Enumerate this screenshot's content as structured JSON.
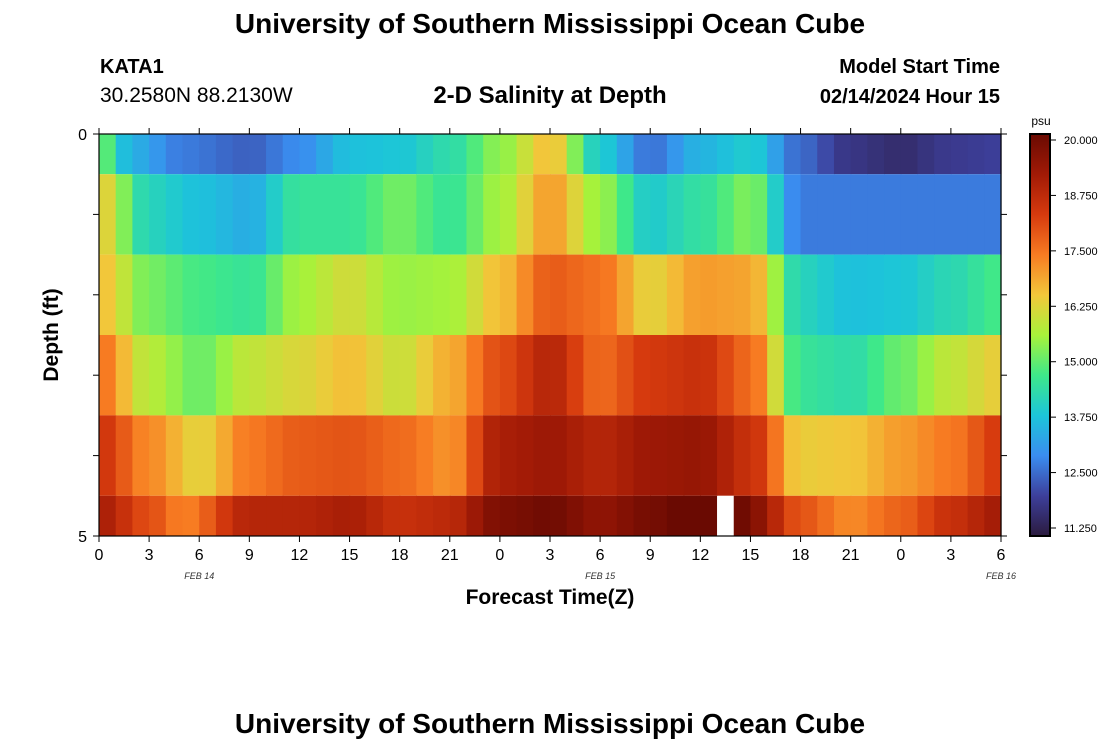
{
  "header": {
    "title": "University of Southern Mississippi Ocean Cube",
    "station": "KATA1",
    "coords": "30.2580N  88.2130W",
    "subtitle": "2-D Salinity at Depth",
    "start_label": "Model Start Time",
    "start_value": "02/14/2024 Hour 15"
  },
  "footer": {
    "title": "University of Southern Mississippi Ocean Cube"
  },
  "chart_data": {
    "type": "heatmap",
    "title": "2-D Salinity at Depth",
    "xlabel": "Forecast Time(Z)",
    "ylabel": "Depth (ft)",
    "x_tick_labels": [
      "0",
      "3",
      "6",
      "9",
      "12",
      "15",
      "18",
      "21",
      "0",
      "3",
      "6",
      "9",
      "12",
      "15",
      "18",
      "21",
      "0",
      "3",
      "6"
    ],
    "y_tick_labels": [
      "0",
      "5"
    ],
    "ylim": [
      0,
      5
    ],
    "date_labels": [
      {
        "label": "FEB 14",
        "hour": 6
      },
      {
        "label": "FEB 15",
        "hour": 30
      },
      {
        "label": "FEB 16",
        "hour": 54
      }
    ],
    "colorbar": {
      "unit": "psu",
      "min": 11.25,
      "max": 20.0,
      "ticks": [
        "20.000",
        "18.750",
        "17.500",
        "16.250",
        "15.000",
        "13.750",
        "12.500",
        "11.250"
      ],
      "colors": [
        "#2b1b3e",
        "#3d3f9b",
        "#3a8df0",
        "#1cc5d9",
        "#3ee88a",
        "#a8f23a",
        "#f2c73a",
        "#f77b22",
        "#d63a0e",
        "#a11a06",
        "#6a0a02"
      ]
    },
    "missing_hour": 37,
    "hours_per_column": 1,
    "layers": [
      {
        "depth_range": [
          0,
          0.5
        ],
        "keys": [
          [
            0,
            15.2
          ],
          [
            2,
            13.5
          ],
          [
            5,
            12.8
          ],
          [
            9,
            12.5
          ],
          [
            12,
            13.0
          ],
          [
            15,
            13.8
          ],
          [
            18,
            13.9
          ],
          [
            21,
            14.4
          ],
          [
            24,
            15.4
          ],
          [
            27,
            16.6
          ],
          [
            30,
            14.0
          ],
          [
            33,
            12.7
          ],
          [
            36,
            13.6
          ],
          [
            39,
            14.0
          ],
          [
            42,
            12.6
          ],
          [
            45,
            11.9
          ],
          [
            48,
            11.7
          ],
          [
            51,
            12.0
          ],
          [
            54,
            12.1
          ]
        ]
      },
      {
        "depth_range": [
          0.5,
          1.5
        ],
        "keys": [
          [
            0,
            16.4
          ],
          [
            3,
            14.2
          ],
          [
            6,
            13.8
          ],
          [
            9,
            13.5
          ],
          [
            12,
            14.6
          ],
          [
            15,
            14.6
          ],
          [
            18,
            15.2
          ],
          [
            21,
            14.6
          ],
          [
            24,
            15.6
          ],
          [
            27,
            17.0
          ],
          [
            30,
            15.5
          ],
          [
            33,
            14.0
          ],
          [
            36,
            14.5
          ],
          [
            39,
            15.3
          ],
          [
            42,
            12.8
          ],
          [
            48,
            12.8
          ],
          [
            54,
            12.8
          ]
        ]
      },
      {
        "depth_range": [
          1.5,
          2.5
        ],
        "keys": [
          [
            0,
            16.6
          ],
          [
            3,
            15.2
          ],
          [
            6,
            14.8
          ],
          [
            9,
            14.6
          ],
          [
            12,
            15.6
          ],
          [
            15,
            16.1
          ],
          [
            18,
            15.5
          ],
          [
            21,
            15.6
          ],
          [
            24,
            16.6
          ],
          [
            27,
            17.8
          ],
          [
            30,
            17.5
          ],
          [
            33,
            16.3
          ],
          [
            36,
            17.0
          ],
          [
            39,
            16.9
          ],
          [
            42,
            14.2
          ],
          [
            45,
            13.8
          ],
          [
            48,
            13.9
          ],
          [
            51,
            14.3
          ],
          [
            54,
            14.8
          ]
        ]
      },
      {
        "depth_range": [
          2.5,
          3.5
        ],
        "keys": [
          [
            0,
            17.5
          ],
          [
            3,
            15.8
          ],
          [
            6,
            15.1
          ],
          [
            9,
            15.9
          ],
          [
            12,
            16.2
          ],
          [
            15,
            16.6
          ],
          [
            18,
            16.0
          ],
          [
            21,
            16.8
          ],
          [
            24,
            18.0
          ],
          [
            27,
            18.8
          ],
          [
            30,
            17.6
          ],
          [
            33,
            18.3
          ],
          [
            36,
            18.5
          ],
          [
            39,
            17.6
          ],
          [
            42,
            14.6
          ],
          [
            45,
            14.4
          ],
          [
            48,
            15.1
          ],
          [
            51,
            15.9
          ],
          [
            54,
            16.4
          ]
        ]
      },
      {
        "depth_range": [
          3.5,
          4.5
        ],
        "keys": [
          [
            0,
            18.4
          ],
          [
            3,
            17.2
          ],
          [
            6,
            16.3
          ],
          [
            9,
            17.4
          ],
          [
            12,
            17.8
          ],
          [
            15,
            17.9
          ],
          [
            18,
            17.6
          ],
          [
            21,
            17.1
          ],
          [
            24,
            19.0
          ],
          [
            27,
            19.2
          ],
          [
            30,
            18.8
          ],
          [
            33,
            19.2
          ],
          [
            36,
            19.3
          ],
          [
            39,
            18.5
          ],
          [
            42,
            16.4
          ],
          [
            45,
            16.5
          ],
          [
            48,
            17.0
          ],
          [
            51,
            17.4
          ],
          [
            54,
            18.3
          ]
        ]
      },
      {
        "depth_range": [
          4.5,
          5
        ],
        "keys": [
          [
            0,
            19.0
          ],
          [
            3,
            18.0
          ],
          [
            5,
            17.3
          ],
          [
            9,
            18.8
          ],
          [
            12,
            18.8
          ],
          [
            15,
            19.0
          ],
          [
            18,
            18.5
          ],
          [
            21,
            18.7
          ],
          [
            24,
            19.7
          ],
          [
            27,
            19.9
          ],
          [
            30,
            19.4
          ],
          [
            33,
            19.8
          ],
          [
            36,
            20.4
          ],
          [
            38,
            20.2
          ],
          [
            39,
            19.6
          ],
          [
            42,
            17.9
          ],
          [
            45,
            17.2
          ],
          [
            48,
            17.7
          ],
          [
            51,
            18.5
          ],
          [
            54,
            19.1
          ]
        ]
      }
    ]
  }
}
